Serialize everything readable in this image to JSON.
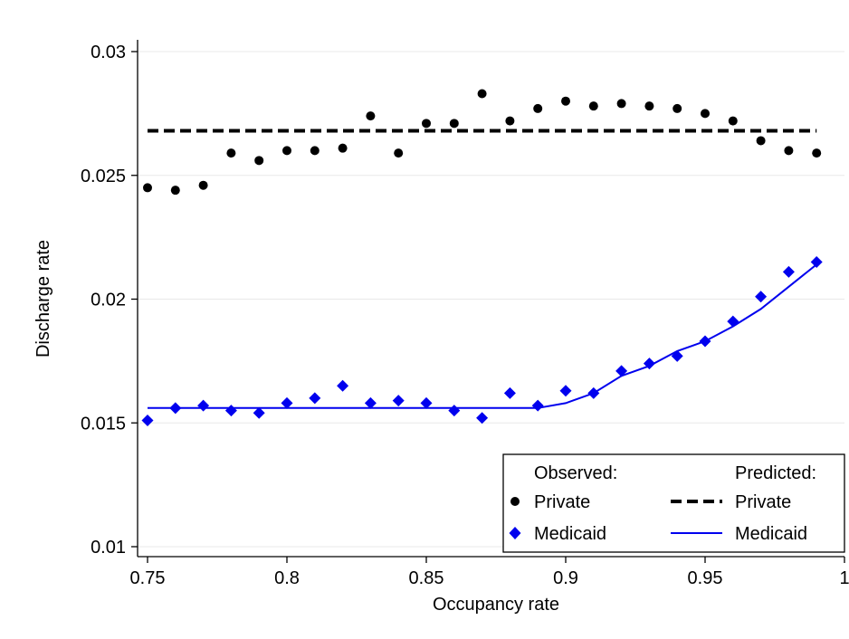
{
  "chart_data": {
    "type": "scatter",
    "title": "",
    "xlabel": "Occupancy rate",
    "ylabel": "Discharge rate",
    "xlim": [
      0.75,
      1.0
    ],
    "ylim": [
      0.01,
      0.03
    ],
    "xticks": [
      0.75,
      0.8,
      0.85,
      0.9,
      0.95,
      1.0
    ],
    "xtick_labels": [
      "0.75",
      "0.8",
      "0.85",
      "0.9",
      "0.95",
      "1"
    ],
    "yticks": [
      0.01,
      0.015,
      0.02,
      0.025,
      0.03
    ],
    "ytick_labels": [
      "0.01",
      "0.015",
      "0.02",
      "0.025",
      "0.03"
    ],
    "grid": "horizontal",
    "legend": {
      "placement": "bottom-right",
      "observed_header": "Observed:",
      "predicted_header": "Predicted:",
      "entries": [
        {
          "group": "observed",
          "label": "Private",
          "marker": "circle",
          "color": "#000000"
        },
        {
          "group": "observed",
          "label": "Medicaid",
          "marker": "diamond",
          "color": "#0000ee"
        },
        {
          "group": "predicted",
          "label": "Private",
          "line": "dashed",
          "color": "#000000"
        },
        {
          "group": "predicted",
          "label": "Medicaid",
          "line": "solid",
          "color": "#0000ee"
        }
      ]
    },
    "x": [
      0.75,
      0.76,
      0.77,
      0.78,
      0.79,
      0.8,
      0.81,
      0.82,
      0.83,
      0.84,
      0.85,
      0.86,
      0.87,
      0.88,
      0.89,
      0.9,
      0.91,
      0.92,
      0.93,
      0.94,
      0.95,
      0.96,
      0.97,
      0.98,
      0.99
    ],
    "series": [
      {
        "name": "Private",
        "kind": "observed",
        "color": "#000000",
        "values": [
          0.0245,
          0.0244,
          0.0246,
          0.0259,
          0.0256,
          0.026,
          0.026,
          0.0261,
          0.0274,
          0.0259,
          0.0271,
          0.0271,
          0.0283,
          0.0272,
          0.0277,
          0.028,
          0.0278,
          0.0279,
          0.0278,
          0.0277,
          0.0275,
          0.0272,
          0.0264,
          0.026,
          0.0259
        ]
      },
      {
        "name": "Medicaid",
        "kind": "observed",
        "color": "#0000ee",
        "values": [
          0.0151,
          0.0156,
          0.0157,
          0.0155,
          0.0154,
          0.0158,
          0.016,
          0.0165,
          0.0158,
          0.0159,
          0.0158,
          0.0155,
          0.0152,
          0.0162,
          0.0157,
          0.0163,
          0.0162,
          0.0171,
          0.0174,
          0.0177,
          0.0183,
          0.0191,
          0.0201,
          0.0211,
          0.0215
        ]
      },
      {
        "name": "Private",
        "kind": "predicted",
        "color": "#000000",
        "line": "dashed",
        "x": [
          0.75,
          0.99
        ],
        "values": [
          0.0268,
          0.0268
        ]
      },
      {
        "name": "Medicaid",
        "kind": "predicted",
        "color": "#0000ee",
        "line": "solid",
        "x": [
          0.75,
          0.89,
          0.9,
          0.91,
          0.92,
          0.93,
          0.94,
          0.95,
          0.96,
          0.97,
          0.98,
          0.99
        ],
        "values": [
          0.0156,
          0.0156,
          0.0158,
          0.0162,
          0.0169,
          0.0173,
          0.0179,
          0.0183,
          0.0189,
          0.0196,
          0.0205,
          0.0214
        ]
      }
    ]
  }
}
